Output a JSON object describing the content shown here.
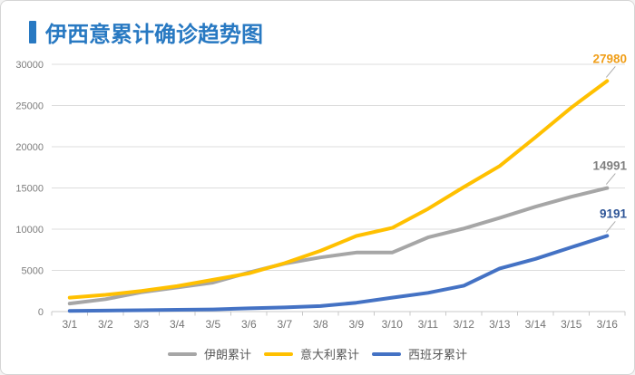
{
  "title": {
    "text": "伊西意累计确诊趋势图"
  },
  "chart_data": {
    "type": "line",
    "title": "伊西意累计确诊趋势图",
    "categories": [
      "3/1",
      "3/2",
      "3/3",
      "3/4",
      "3/5",
      "3/6",
      "3/7",
      "3/8",
      "3/9",
      "3/10",
      "3/11",
      "3/12",
      "3/13",
      "3/14",
      "3/15",
      "3/16"
    ],
    "series": [
      {
        "name": "伊朗累计",
        "color": "#A6A6A6",
        "label_color": "#7F7F7F",
        "end_label": "14991",
        "values": [
          978,
          1501,
          2336,
          2922,
          3513,
          4747,
          5823,
          6566,
          7161,
          7161,
          9000,
          10075,
          11364,
          12729,
          13938,
          14991
        ]
      },
      {
        "name": "意大利累计",
        "color": "#FFC000",
        "label_color": "#F09E18",
        "end_label": "27980",
        "values": [
          1694,
          2036,
          2502,
          3089,
          3858,
          4636,
          5883,
          7375,
          9172,
          10149,
          12462,
          15113,
          17660,
          21157,
          24747,
          27980
        ]
      },
      {
        "name": "西班牙累计",
        "color": "#4472C4",
        "label_color": "#2E5597",
        "end_label": "9191",
        "values": [
          84,
          120,
          165,
          222,
          259,
          400,
          500,
          673,
          1073,
          1695,
          2277,
          3146,
          5232,
          6391,
          7798,
          9191
        ]
      }
    ],
    "ylim": [
      0,
      30000
    ],
    "yticks": [
      0,
      5000,
      10000,
      15000,
      20000,
      25000,
      30000
    ],
    "grid": true,
    "legend_position": "bottom",
    "xlabel": "",
    "ylabel": ""
  }
}
